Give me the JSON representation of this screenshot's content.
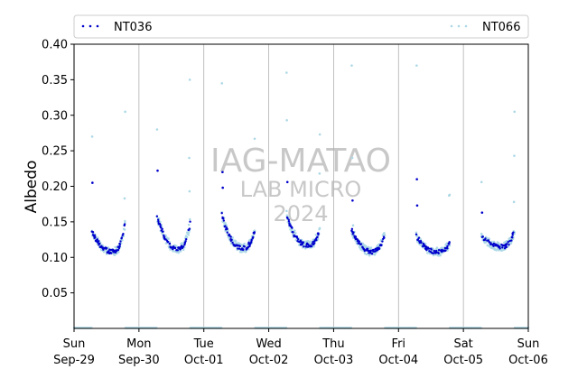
{
  "chart_data": {
    "type": "scatter",
    "title": "",
    "xlabel": "",
    "ylabel": "Albedo",
    "ylim": [
      0.0,
      0.4
    ],
    "yticks": [
      "0.05",
      "0.10",
      "0.15",
      "0.20",
      "0.25",
      "0.30",
      "0.35",
      "0.40"
    ],
    "xlim": [
      0,
      7
    ],
    "xticks": [
      {
        "day": "Sun",
        "date": "Sep-29"
      },
      {
        "day": "Mon",
        "date": "Sep-30"
      },
      {
        "day": "Tue",
        "date": "Oct-01"
      },
      {
        "day": "Wed",
        "date": "Oct-02"
      },
      {
        "day": "Thu",
        "date": "Oct-03"
      },
      {
        "day": "Fri",
        "date": "Oct-04"
      },
      {
        "day": "Sat",
        "date": "Oct-05"
      },
      {
        "day": "Sun",
        "date": "Oct-06"
      }
    ],
    "grid": "vertical at day boundaries",
    "legend_placement": "top, spanning width",
    "series": [
      {
        "name": "NT036",
        "color": "#0000cc",
        "marker": "dots"
      },
      {
        "name": "NT066",
        "color": "#add8e6",
        "marker": "dots"
      }
    ],
    "daily_pattern": {
      "day_start_hour": 6.6,
      "day_end_hour": 19.0,
      "albedo_morning_end": 0.135,
      "albedo_min": 0.11,
      "albedo_evening_end": 0.15
    },
    "days": [
      {
        "date": "Sep-29",
        "min": 0.108,
        "morning": 0.137,
        "evening": 0.15,
        "spikes": [
          [
            6.7,
            0.27
          ],
          [
            6.8,
            0.205
          ],
          [
            18.9,
            0.305
          ],
          [
            18.7,
            0.183
          ]
        ]
      },
      {
        "date": "Sep-30",
        "min": 0.112,
        "morning": 0.16,
        "evening": 0.15,
        "spikes": [
          [
            6.7,
            0.28
          ],
          [
            6.9,
            0.222
          ],
          [
            18.8,
            0.35
          ],
          [
            18.6,
            0.24
          ],
          [
            18.7,
            0.193
          ]
        ]
      },
      {
        "date": "Oct-01",
        "min": 0.113,
        "morning": 0.16,
        "evening": 0.14,
        "spikes": [
          [
            6.7,
            0.345
          ],
          [
            6.9,
            0.22
          ],
          [
            7.0,
            0.198
          ],
          [
            18.8,
            0.267
          ]
        ]
      },
      {
        "date": "Oct-02",
        "min": 0.117,
        "morning": 0.16,
        "evening": 0.14,
        "spikes": [
          [
            6.6,
            0.36
          ],
          [
            6.7,
            0.293
          ],
          [
            6.9,
            0.206
          ],
          [
            18.9,
            0.273
          ],
          [
            18.8,
            0.218
          ]
        ]
      },
      {
        "date": "Oct-03",
        "min": 0.108,
        "morning": 0.14,
        "evening": 0.135,
        "spikes": [
          [
            6.7,
            0.37
          ],
          [
            6.9,
            0.24
          ],
          [
            7.0,
            0.18
          ],
          [
            7.2,
            0.145
          ]
        ]
      },
      {
        "date": "Oct-04",
        "min": 0.108,
        "morning": 0.13,
        "evening": 0.12,
        "spikes": [
          [
            6.7,
            0.37
          ],
          [
            6.8,
            0.21
          ],
          [
            6.9,
            0.173
          ],
          [
            18.9,
            0.188
          ],
          [
            18.7,
            0.187
          ]
        ]
      },
      {
        "date": "Oct-05",
        "min": 0.115,
        "morning": 0.13,
        "evening": 0.14,
        "spikes": [
          [
            6.7,
            0.206
          ],
          [
            6.9,
            0.163
          ],
          [
            18.9,
            0.305
          ],
          [
            18.8,
            0.243
          ],
          [
            18.7,
            0.178
          ]
        ]
      }
    ],
    "night_value": 0.0
  },
  "watermark": {
    "line1": "IAG-MATAO",
    "line2": "LAB MICRO",
    "line3": "2024"
  }
}
